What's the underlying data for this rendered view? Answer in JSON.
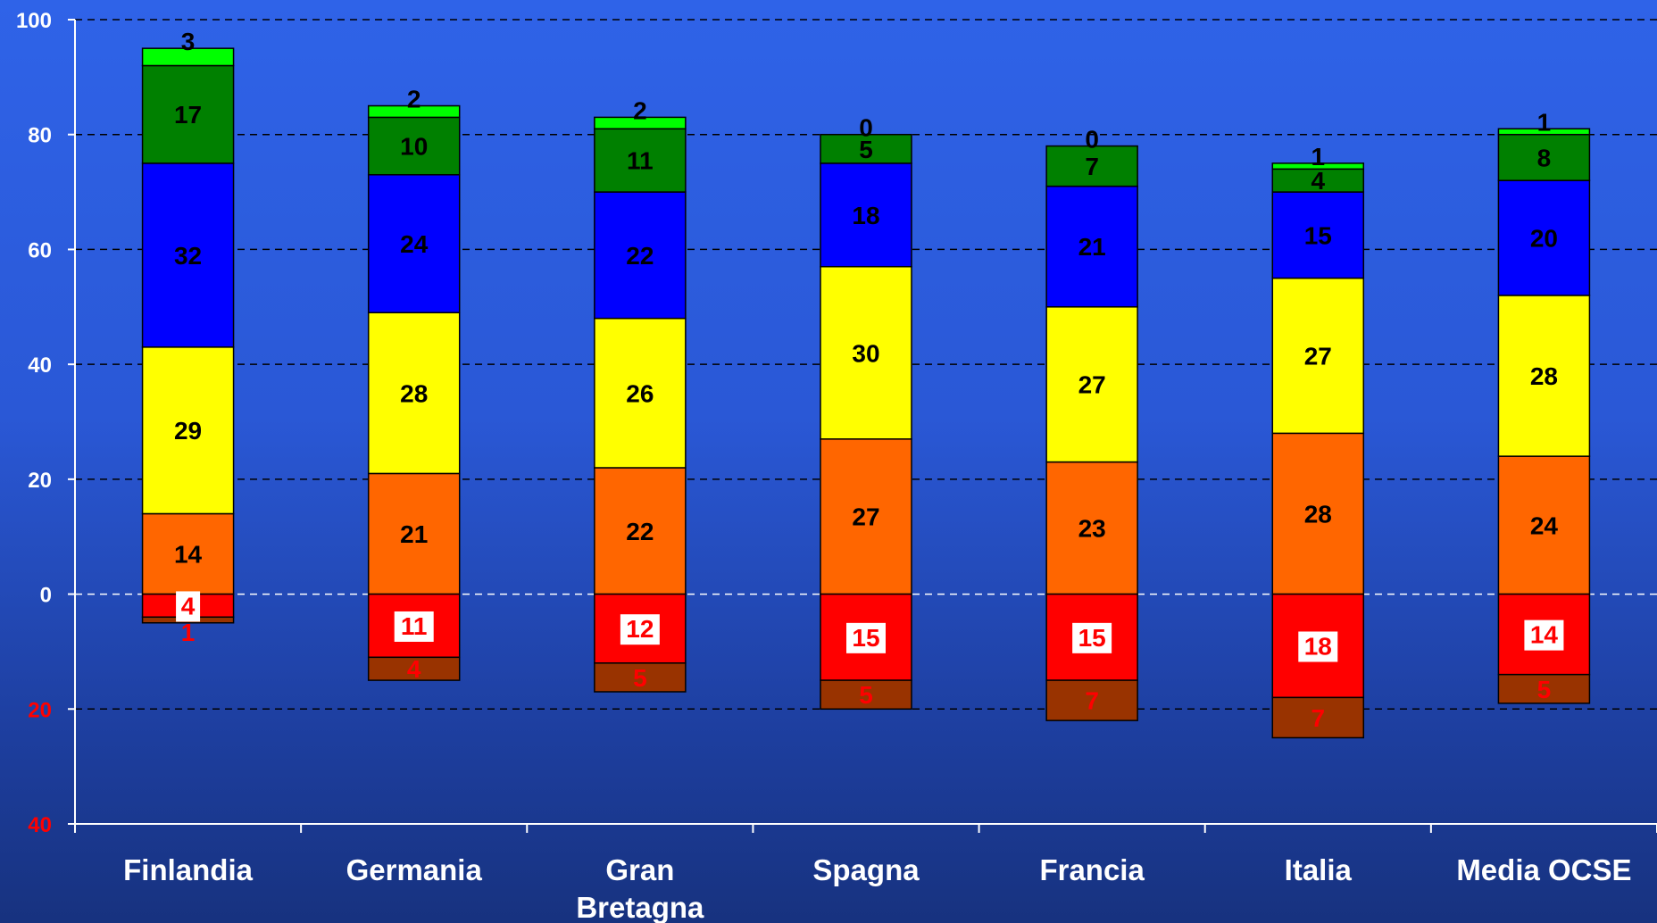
{
  "chart_data": {
    "type": "bar",
    "stacked": true,
    "categories": [
      "Finlandia",
      "Germania",
      "Gran Bretagna",
      "Spagna",
      "Francia",
      "Italia",
      "Media OCSE"
    ],
    "category_lines": [
      [
        "Finlandia"
      ],
      [
        "Germania"
      ],
      [
        "Gran",
        "Bretagna"
      ],
      [
        "Spagna"
      ],
      [
        "Francia"
      ],
      [
        "Italia"
      ],
      [
        "Media OCSE"
      ]
    ],
    "series_positive": [
      {
        "color": "#ff6600",
        "values": [
          14,
          21,
          22,
          27,
          23,
          28,
          24
        ]
      },
      {
        "color": "#ffff00",
        "values": [
          29,
          28,
          26,
          30,
          27,
          27,
          28
        ]
      },
      {
        "color": "#0000ff",
        "values": [
          32,
          24,
          22,
          18,
          21,
          15,
          20
        ]
      },
      {
        "color": "#008000",
        "values": [
          17,
          10,
          11,
          5,
          7,
          4,
          8
        ]
      },
      {
        "color": "#00ff00",
        "values": [
          3,
          2,
          2,
          0,
          0,
          1,
          1
        ]
      }
    ],
    "series_negative": [
      {
        "color": "#ff0000",
        "values": [
          4,
          11,
          12,
          15,
          15,
          18,
          14
        ]
      },
      {
        "color": "#993300",
        "values": [
          1,
          4,
          5,
          5,
          7,
          7,
          5
        ]
      }
    ],
    "ylim": [
      -40,
      100
    ],
    "y_ticks": [
      {
        "value": 100,
        "label": "100",
        "color": "#ffffff"
      },
      {
        "value": 80,
        "label": "80",
        "color": "#ffffff"
      },
      {
        "value": 60,
        "label": "60",
        "color": "#ffffff"
      },
      {
        "value": 40,
        "label": "40",
        "color": "#ffffff"
      },
      {
        "value": 20,
        "label": "20",
        "color": "#ffffff"
      },
      {
        "value": 0,
        "label": "0",
        "color": "#ffffff"
      },
      {
        "value": -20,
        "label": "20",
        "color": "#ff0000"
      },
      {
        "value": -40,
        "label": "40",
        "color": "#ff0000"
      }
    ],
    "grid": true,
    "gridline_color": "#000000",
    "zero_line_color": "#ffffff",
    "axis_color": "#ffffff",
    "label_color_positive": "#000000",
    "label_color_negative": "#ff0000",
    "xlabel": "",
    "ylabel": ""
  }
}
